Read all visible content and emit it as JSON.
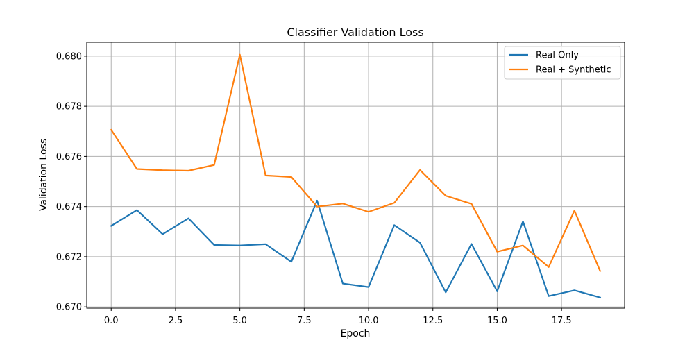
{
  "chart_data": {
    "type": "line",
    "title": "Classifier Validation Loss",
    "xlabel": "Epoch",
    "ylabel": "Validation Loss",
    "xlim": [
      -0.95,
      19.95
    ],
    "ylim": [
      0.66995,
      0.68055
    ],
    "xticks": [
      0.0,
      2.5,
      5.0,
      7.5,
      10.0,
      12.5,
      15.0,
      17.5
    ],
    "xtick_labels": [
      "0.0",
      "2.5",
      "5.0",
      "7.5",
      "10.0",
      "12.5",
      "15.0",
      "17.5"
    ],
    "yticks": [
      0.67,
      0.672,
      0.674,
      0.676,
      0.678,
      0.68
    ],
    "ytick_labels": [
      "0.670",
      "0.672",
      "0.674",
      "0.676",
      "0.678",
      "0.680"
    ],
    "grid": true,
    "legend_position": "top-right",
    "x": [
      0,
      1,
      2,
      3,
      4,
      5,
      6,
      7,
      8,
      9,
      10,
      11,
      12,
      13,
      14,
      15,
      16,
      17,
      18,
      19
    ],
    "series": [
      {
        "name": "Real Only",
        "color": "#1f77b4",
        "values": [
          0.67323,
          0.67386,
          0.6729,
          0.67353,
          0.67247,
          0.67245,
          0.6725,
          0.6718,
          0.67424,
          0.67093,
          0.67079,
          0.67326,
          0.67256,
          0.67058,
          0.67251,
          0.67062,
          0.67341,
          0.67043,
          0.67066,
          0.67037
        ]
      },
      {
        "name": "Real + Synthetic",
        "color": "#ff7f0e",
        "values": [
          0.67706,
          0.6755,
          0.67545,
          0.67543,
          0.67566,
          0.68006,
          0.67524,
          0.67518,
          0.674,
          0.67412,
          0.67379,
          0.67415,
          0.67546,
          0.67443,
          0.67411,
          0.6722,
          0.67245,
          0.67159,
          0.67384,
          0.67143
        ]
      }
    ]
  }
}
